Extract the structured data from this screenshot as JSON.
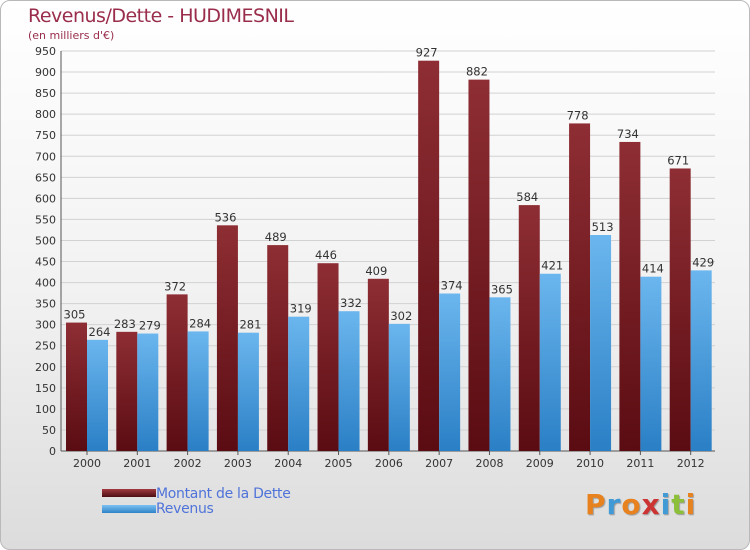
{
  "chart_data": {
    "type": "bar",
    "title": "Revenus/Dette - HUDIMESNIL",
    "subtitle": "(en milliers d'€)",
    "categories": [
      "2000",
      "2001",
      "2002",
      "2003",
      "2004",
      "2005",
      "2006",
      "2007",
      "2008",
      "2009",
      "2010",
      "2011",
      "2012"
    ],
    "series": [
      {
        "name": "Montant de la Dette",
        "color": "#7a1f25",
        "values": [
          305,
          283,
          372,
          536,
          489,
          446,
          409,
          927,
          882,
          584,
          778,
          734,
          671
        ]
      },
      {
        "name": "Revenus",
        "color": "#4a9fe0",
        "values": [
          264,
          279,
          284,
          281,
          319,
          332,
          302,
          374,
          365,
          421,
          513,
          414,
          429
        ]
      }
    ],
    "ylim": [
      0,
      950
    ],
    "ytick_step": 50,
    "grid": true,
    "legend": "bottom-left"
  },
  "branding": {
    "logo_letters": [
      "P",
      "r",
      "o",
      "x",
      "i",
      "t",
      "i"
    ],
    "logo_colors": [
      "#e8821e",
      "#3f9ad6",
      "#e8821e",
      "#cc3333",
      "#3f9ad6",
      "#8cbf3a",
      "#e8821e"
    ]
  }
}
